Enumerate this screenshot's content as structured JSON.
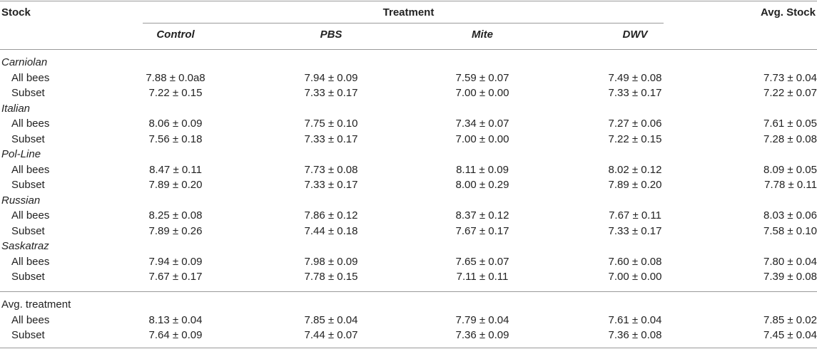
{
  "header": {
    "stock": "Stock",
    "treatment": "Treatment",
    "avg_stock": "Avg. Stock",
    "treatments": [
      "Control",
      "PBS",
      "Mite",
      "DWV"
    ]
  },
  "groups": [
    {
      "name": "Carniolan",
      "rows": [
        {
          "label": "All bees",
          "values": [
            "7.88 ± 0.0a8",
            "7.94 ± 0.09",
            "7.59 ± 0.07",
            "7.49 ± 0.08"
          ],
          "avg": "7.73 ± 0.04"
        },
        {
          "label": "Subset",
          "values": [
            "7.22 ± 0.15",
            "7.33 ± 0.17",
            "7.00 ± 0.00",
            "7.33 ± 0.17"
          ],
          "avg": "7.22 ± 0.07"
        }
      ]
    },
    {
      "name": "Italian",
      "rows": [
        {
          "label": "All bees",
          "values": [
            "8.06 ± 0.09",
            "7.75 ± 0.10",
            "7.34 ± 0.07",
            "7.27 ± 0.06"
          ],
          "avg": "7.61 ± 0.05"
        },
        {
          "label": "Subset",
          "values": [
            "7.56 ± 0.18",
            "7.33 ± 0.17",
            "7.00 ± 0.00",
            "7.22 ± 0.15"
          ],
          "avg": "7.28 ± 0.08"
        }
      ]
    },
    {
      "name": "Pol-Line",
      "rows": [
        {
          "label": "All bees",
          "values": [
            "8.47 ± 0.11",
            "7.73 ± 0.08",
            "8.11 ± 0.09",
            "8.02 ± 0.12"
          ],
          "avg": "8.09 ± 0.05"
        },
        {
          "label": "Subset",
          "values": [
            "7.89 ± 0.20",
            "7.33 ± 0.17",
            "8.00 ± 0.29",
            "7.89 ± 0.20"
          ],
          "avg": "7.78 ± 0.11"
        }
      ]
    },
    {
      "name": "Russian",
      "rows": [
        {
          "label": "All bees",
          "values": [
            "8.25 ± 0.08",
            "7.86 ± 0.12",
            "8.37 ± 0.12",
            "7.67 ± 0.11"
          ],
          "avg": "8.03 ± 0.06"
        },
        {
          "label": "Subset",
          "values": [
            "7.89 ± 0.26",
            "7.44 ± 0.18",
            "7.67 ± 0.17",
            "7.33 ± 0.17"
          ],
          "avg": "7.58 ± 0.10"
        }
      ]
    },
    {
      "name": "Saskatraz",
      "rows": [
        {
          "label": "All bees",
          "values": [
            "7.94 ± 0.09",
            "7.98 ± 0.09",
            "7.65 ± 0.07",
            "7.60 ± 0.08"
          ],
          "avg": "7.80 ± 0.04"
        },
        {
          "label": "Subset",
          "values": [
            "7.67 ± 0.17",
            "7.78 ± 0.15",
            "7.11 ± 0.11",
            "7.00 ± 0.00"
          ],
          "avg": "7.39 ± 0.08"
        }
      ]
    }
  ],
  "avg_treatment": {
    "label": "Avg. treatment",
    "rows": [
      {
        "label": "All bees",
        "values": [
          "8.13 ± 0.04",
          "7.85 ± 0.04",
          "7.79 ± 0.04",
          "7.61 ± 0.04"
        ],
        "avg": "7.85 ± 0.02"
      },
      {
        "label": "Subset",
        "values": [
          "7.64 ± 0.09",
          "7.44 ± 0.07",
          "7.36 ± 0.09",
          "7.36 ± 0.08"
        ],
        "avg": "7.45 ± 0.04"
      }
    ]
  }
}
